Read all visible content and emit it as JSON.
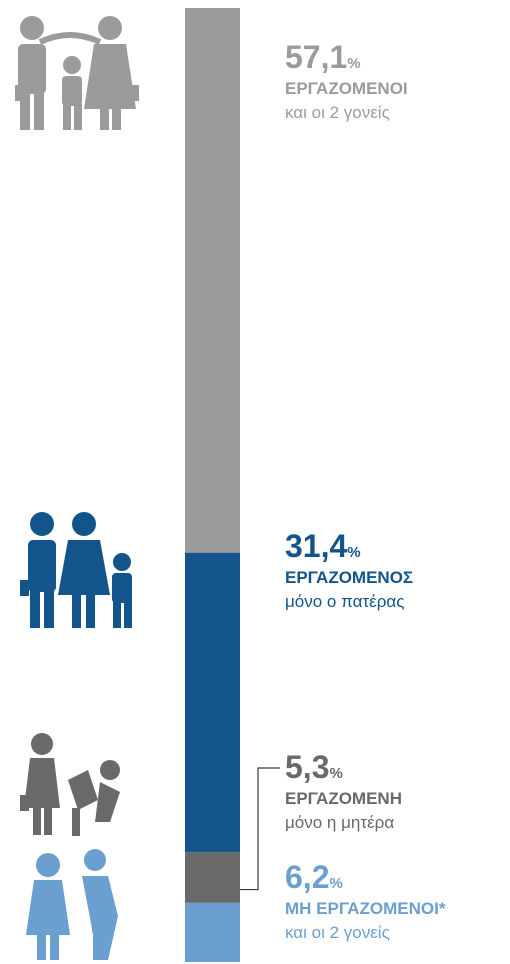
{
  "chart_data": {
    "type": "stacked-bar",
    "unit": "%",
    "ylim": [
      0,
      100
    ],
    "series": [
      {
        "name": "ΕΡΓΑΖΟΜΕΝΟΙ",
        "subtitle": "και οι 2 γονείς",
        "color": "#9a9b9d",
        "values": [
          57.1
        ],
        "value_labels": [
          "57,1"
        ]
      },
      {
        "name": "ΕΡΓΑΖΟΜΕΝΟΣ",
        "subtitle": "μόνο ο πατέρας",
        "color": "#13558a",
        "values": [
          31.4
        ],
        "value_labels": [
          "31,4"
        ]
      },
      {
        "name": "ΕΡΓΑΖΟΜΕΝΗ",
        "subtitle": "μόνο η μητέρα",
        "color": "#68696b",
        "values": [
          5.3
        ],
        "value_labels": [
          "5,3"
        ]
      },
      {
        "name": "ΜΗ ΕΡΓΑΖΟΜΕΝΟΙ*",
        "subtitle": "και οι 2 γονείς",
        "color": "#6a9fcf",
        "values": [
          6.2
        ],
        "value_labels": [
          "6,2"
        ]
      }
    ]
  }
}
